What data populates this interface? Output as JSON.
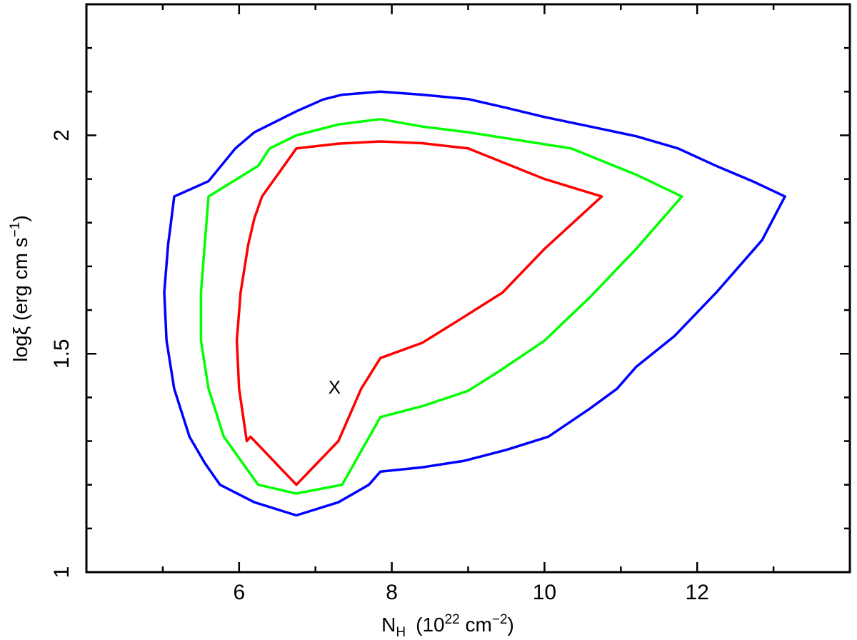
{
  "chart_data": {
    "type": "line",
    "xlabel": {
      "main": "N",
      "sub": "H",
      "rest": "(10",
      "exp": "22",
      "unit": " cm",
      "unit_exp": "−2",
      "close": ")"
    },
    "ylabel": {
      "main": "logξ (erg cm s",
      "exp": "−1",
      "close": ")"
    },
    "xlim": [
      4,
      14
    ],
    "ylim": [
      1,
      2.3
    ],
    "x_ticks": [
      6,
      8,
      10,
      12
    ],
    "x_tick_labels": [
      "6",
      "8",
      "10",
      "12"
    ],
    "x_minor_ticks": [
      5,
      7,
      9,
      11,
      13
    ],
    "y_ticks": [
      1,
      1.5,
      2
    ],
    "y_tick_labels": [
      "1",
      "1.5",
      "2"
    ],
    "y_minor_ticks": [
      1.1,
      1.2,
      1.3,
      1.4,
      1.6,
      1.7,
      1.8,
      1.9,
      2.1,
      2.2
    ],
    "grid": false,
    "best_fit": {
      "label": "X",
      "x": 7.25,
      "y": 1.42
    },
    "series": [
      {
        "color": "#ff0000",
        "points": [
          [
            7.85,
            1.986
          ],
          [
            8.4,
            1.982
          ],
          [
            9.0,
            1.97
          ],
          [
            10.0,
            1.9
          ],
          [
            10.75,
            1.86
          ],
          [
            10.0,
            1.74
          ],
          [
            9.45,
            1.64
          ],
          [
            8.95,
            1.585
          ],
          [
            8.4,
            1.525
          ],
          [
            7.85,
            1.49
          ],
          [
            7.6,
            1.42
          ],
          [
            7.3,
            1.3
          ],
          [
            6.75,
            1.2
          ],
          [
            6.15,
            1.31
          ],
          [
            6.1,
            1.3
          ],
          [
            6.0,
            1.42
          ],
          [
            5.97,
            1.53
          ],
          [
            6.02,
            1.64
          ],
          [
            6.12,
            1.75
          ],
          [
            6.2,
            1.81
          ],
          [
            6.3,
            1.86
          ],
          [
            6.75,
            1.97
          ],
          [
            7.3,
            1.981
          ],
          [
            7.85,
            1.986
          ]
        ]
      },
      {
        "color": "#00ff00",
        "points": [
          [
            7.85,
            2.037
          ],
          [
            8.4,
            2.02
          ],
          [
            9.0,
            2.007
          ],
          [
            10.35,
            1.97
          ],
          [
            11.2,
            1.91
          ],
          [
            11.8,
            1.86
          ],
          [
            11.2,
            1.74
          ],
          [
            10.6,
            1.63
          ],
          [
            10.0,
            1.53
          ],
          [
            9.45,
            1.465
          ],
          [
            9.0,
            1.415
          ],
          [
            8.4,
            1.38
          ],
          [
            7.85,
            1.355
          ],
          [
            7.35,
            1.2
          ],
          [
            6.75,
            1.18
          ],
          [
            6.25,
            1.2
          ],
          [
            5.8,
            1.31
          ],
          [
            5.6,
            1.42
          ],
          [
            5.5,
            1.53
          ],
          [
            5.5,
            1.64
          ],
          [
            5.55,
            1.75
          ],
          [
            5.6,
            1.86
          ],
          [
            6.25,
            1.93
          ],
          [
            6.4,
            1.97
          ],
          [
            6.75,
            2.0
          ],
          [
            7.3,
            2.025
          ],
          [
            7.85,
            2.037
          ]
        ]
      },
      {
        "color": "#0000ff",
        "points": [
          [
            7.85,
            2.1
          ],
          [
            8.4,
            2.093
          ],
          [
            9.0,
            2.083
          ],
          [
            9.5,
            2.063
          ],
          [
            10.0,
            2.042
          ],
          [
            10.6,
            2.02
          ],
          [
            11.2,
            1.998
          ],
          [
            11.75,
            1.97
          ],
          [
            12.25,
            1.93
          ],
          [
            12.75,
            1.893
          ],
          [
            13.15,
            1.86
          ],
          [
            12.85,
            1.76
          ],
          [
            12.25,
            1.64
          ],
          [
            11.7,
            1.54
          ],
          [
            11.2,
            1.47
          ],
          [
            10.95,
            1.42
          ],
          [
            10.6,
            1.375
          ],
          [
            10.05,
            1.31
          ],
          [
            9.5,
            1.28
          ],
          [
            8.95,
            1.255
          ],
          [
            8.4,
            1.24
          ],
          [
            7.85,
            1.23
          ],
          [
            7.7,
            1.2
          ],
          [
            7.3,
            1.16
          ],
          [
            6.75,
            1.13
          ],
          [
            6.2,
            1.16
          ],
          [
            5.75,
            1.2
          ],
          [
            5.55,
            1.25
          ],
          [
            5.35,
            1.31
          ],
          [
            5.15,
            1.42
          ],
          [
            5.05,
            1.53
          ],
          [
            5.02,
            1.64
          ],
          [
            5.07,
            1.75
          ],
          [
            5.1,
            1.79
          ],
          [
            5.15,
            1.86
          ],
          [
            5.6,
            1.895
          ],
          [
            5.95,
            1.97
          ],
          [
            6.2,
            2.007
          ],
          [
            6.75,
            2.055
          ],
          [
            7.1,
            2.082
          ],
          [
            7.35,
            2.093
          ],
          [
            7.85,
            2.1
          ]
        ]
      }
    ]
  }
}
